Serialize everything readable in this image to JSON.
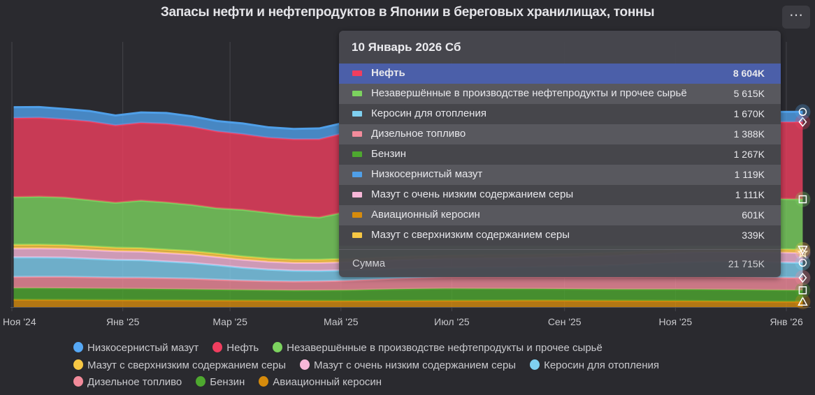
{
  "header": {
    "title": "Запасы нефти и нефтепродуктов в Японии в береговых хранилищах, тонны",
    "menu_icon": "ellipsis-icon",
    "menu_label": "⋯"
  },
  "chart_data": {
    "type": "area",
    "stacked": true,
    "title": "Запасы нефти и нефтепродуктов в Японии в береговых хранилищах, тонны",
    "unit": "тыс. тонн",
    "grid": "vertical",
    "legend_position": "bottom",
    "x_ticks": [
      {
        "date": "2024-11-01",
        "label": "Ноя '24"
      },
      {
        "date": "2025-01-01",
        "label": "Янв '25"
      },
      {
        "date": "2025-03-01",
        "label": "Мар '25"
      },
      {
        "date": "2025-05-01",
        "label": "Май '25"
      },
      {
        "date": "2025-07-01",
        "label": "Июл '25"
      },
      {
        "date": "2025-09-01",
        "label": "Сен '25"
      },
      {
        "date": "2025-11-01",
        "label": "Ноя '25"
      },
      {
        "date": "2026-01-01",
        "label": "Янв '26"
      }
    ],
    "x": [
      "2024-11-02",
      "2024-11-16",
      "2024-11-30",
      "2024-12-14",
      "2024-12-28",
      "2025-01-11",
      "2025-01-25",
      "2025-02-08",
      "2025-02-22",
      "2025-03-08",
      "2025-03-22",
      "2025-04-05",
      "2025-04-19",
      "2025-05-03",
      "2025-05-17",
      "2025-05-31",
      "2025-06-14",
      "2025-06-28",
      "2025-07-12",
      "2025-07-26",
      "2025-08-09",
      "2025-08-23",
      "2025-09-06",
      "2025-09-20",
      "2025-10-04",
      "2025-10-18",
      "2025-11-01",
      "2025-11-15",
      "2025-11-29",
      "2025-12-13",
      "2025-12-27",
      "2026-01-10"
    ],
    "series": [
      {
        "name": "Авиационный керосин",
        "color": "#d68b0c",
        "marker": "triangle",
        "values": [
          820,
          810,
          800,
          790,
          780,
          770,
          760,
          750,
          740,
          730,
          720,
          700,
          690,
          680,
          690,
          700,
          710,
          720,
          720,
          730,
          740,
          740,
          730,
          720,
          710,
          700,
          690,
          670,
          650,
          630,
          610,
          601
        ]
      },
      {
        "name": "Бензин",
        "color": "#4ea82f",
        "marker": "square",
        "values": [
          1300,
          1310,
          1300,
          1290,
          1280,
          1270,
          1250,
          1230,
          1200,
          1180,
          1160,
          1150,
          1170,
          1200,
          1250,
          1300,
          1330,
          1350,
          1340,
          1320,
          1300,
          1290,
          1280,
          1270,
          1270,
          1280,
          1290,
          1300,
          1300,
          1290,
          1280,
          1267
        ]
      },
      {
        "name": "Дизельное топливо",
        "color": "#f28b9b",
        "marker": "diamond",
        "values": [
          1240,
          1260,
          1280,
          1250,
          1220,
          1230,
          1210,
          1180,
          1120,
          1050,
          1010,
          1000,
          1020,
          1060,
          1120,
          1180,
          1230,
          1270,
          1300,
          1320,
          1330,
          1340,
          1350,
          1360,
          1380,
          1400,
          1420,
          1430,
          1420,
          1410,
          1400,
          1388
        ]
      },
      {
        "name": "Керосин для отопления",
        "color": "#7fd0f0",
        "marker": "circle",
        "values": [
          2170,
          2150,
          2120,
          2050,
          1980,
          1950,
          1850,
          1750,
          1600,
          1420,
          1280,
          1200,
          1150,
          1150,
          1100,
          1080,
          1060,
          1050,
          1050,
          1060,
          1080,
          1120,
          1180,
          1260,
          1350,
          1450,
          1550,
          1620,
          1660,
          1680,
          1690,
          1670
        ]
      },
      {
        "name": "Мазут с очень низким содержанием серы",
        "color": "#f7b7d8",
        "marker": "star",
        "values": [
          1000,
          1010,
          1000,
          990,
          970,
          960,
          950,
          950,
          920,
          900,
          890,
          880,
          900,
          920,
          950,
          980,
          1000,
          1010,
          1020,
          1030,
          1040,
          1050,
          1060,
          1070,
          1080,
          1090,
          1100,
          1110,
          1110,
          1110,
          1115,
          1111
        ]
      },
      {
        "name": "Мазут с сверхнизким содержанием серы",
        "color": "#f7c744",
        "marker": "triangle-down",
        "values": [
          400,
          400,
          390,
          380,
          380,
          370,
          370,
          360,
          360,
          350,
          340,
          340,
          340,
          350,
          350,
          350,
          350,
          350,
          350,
          350,
          340,
          340,
          340,
          340,
          340,
          340,
          340,
          340,
          340,
          340,
          339,
          339
        ]
      },
      {
        "name": "Незавершённые в производстве нефтепродукты и прочее сырьё",
        "color": "#7cd35f",
        "marker": "square",
        "values": [
          5300,
          5350,
          5300,
          5150,
          5000,
          5300,
          5250,
          5150,
          5050,
          5200,
          5100,
          4900,
          4700,
          5200,
          5500,
          5700,
          5800,
          5700,
          5600,
          5500,
          5400,
          5300,
          5300,
          5400,
          5500,
          5500,
          5600,
          5600,
          5600,
          5600,
          5610,
          5615
        ]
      },
      {
        "name": "Нефть",
        "color": "#f03e5f",
        "marker": "diamond",
        "values": [
          8800,
          8780,
          8700,
          8750,
          8600,
          8650,
          8750,
          8700,
          8550,
          8400,
          8350,
          8500,
          8700,
          8800,
          8900,
          9000,
          9100,
          9000,
          8900,
          8800,
          8700,
          8600,
          8500,
          8400,
          8300,
          8200,
          8200,
          8300,
          8400,
          8500,
          8550,
          8604
        ]
      },
      {
        "name": "Низкосернистый мазут",
        "color": "#4f9fe8",
        "marker": "circle",
        "values": [
          1200,
          1180,
          1150,
          1150,
          1100,
          1150,
          1200,
          1150,
          1150,
          1200,
          1150,
          1150,
          1200,
          1150,
          1100,
          1100,
          1100,
          1050,
          1050,
          1000,
          1000,
          1000,
          1050,
          1050,
          1100,
          1100,
          1100,
          1100,
          1120,
          1100,
          1110,
          1119
        ]
      }
    ],
    "ylim": [
      0,
      29500
    ]
  },
  "tooltip": {
    "date": "10 Январь 2026 Сб",
    "rows": [
      {
        "name": "Нефть",
        "value": "8 604K",
        "color": "#f03e5f",
        "highlighted": true
      },
      {
        "name": "Незавершённые в производстве нефтепродукты и прочее сырьё",
        "value": "5 615K",
        "color": "#7cd35f"
      },
      {
        "name": "Керосин для отопления",
        "value": "1 670K",
        "color": "#7fd0f0"
      },
      {
        "name": "Дизельное топливо",
        "value": "1 388K",
        "color": "#f28b9b"
      },
      {
        "name": "Бензин",
        "value": "1 267K",
        "color": "#4ea82f"
      },
      {
        "name": "Низкосернистый мазут",
        "value": "1 119K",
        "color": "#4f9fe8"
      },
      {
        "name": "Мазут с очень низким содержанием серы",
        "value": "1 111K",
        "color": "#f7b7d8"
      },
      {
        "name": "Авиационный керосин",
        "value": "601K",
        "color": "#d68b0c"
      },
      {
        "name": "Мазут с сверхнизким содержанием серы",
        "value": "339K",
        "color": "#f7c744"
      }
    ],
    "sum_label": "Сумма",
    "sum_value": "21 715K"
  },
  "legend": {
    "rows": [
      [
        {
          "name": "Низкосернистый мазут",
          "color": "#56a8f5"
        },
        {
          "name": "Нефть",
          "color": "#f03e5f"
        },
        {
          "name": "Незавершённые в производстве нефтепродукты и прочее сырьё",
          "color": "#7cd35f"
        }
      ],
      [
        {
          "name": "Мазут с сверхнизким содержанием серы",
          "color": "#f7c744"
        },
        {
          "name": "Мазут с очень низким содержанием серы",
          "color": "#f7b7d8"
        },
        {
          "name": "Керосин для отопления",
          "color": "#7fd0f0"
        }
      ],
      [
        {
          "name": "Дизельное топливо",
          "color": "#f28b9b"
        },
        {
          "name": "Бензин",
          "color": "#4ea82f"
        },
        {
          "name": "Авиационный керосин",
          "color": "#d68b0c"
        }
      ]
    ]
  }
}
